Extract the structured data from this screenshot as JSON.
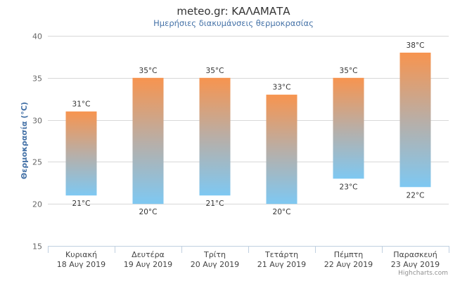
{
  "chart_data": {
    "type": "bar",
    "variant": "columnrange",
    "title": "meteo.gr: ΚΑΛΑΜΑΤΑ",
    "subtitle": "Ημερήσιες διακυμάνσεις θερμοκρασίας",
    "ylabel": "Θερμοκρασία (°C)",
    "ylim": [
      15,
      40
    ],
    "yticks": [
      15,
      20,
      25,
      30,
      35,
      40
    ],
    "grid": true,
    "legend": "none",
    "credits": "Highcharts.com",
    "categories": [
      {
        "day": "Κυριακή",
        "date": "18 Αυγ 2019"
      },
      {
        "day": "Δευτέρα",
        "date": "19 Αυγ 2019"
      },
      {
        "day": "Τρίτη",
        "date": "20 Αυγ 2019"
      },
      {
        "day": "Τετάρτη",
        "date": "21 Αυγ 2019"
      },
      {
        "day": "Πέμπτη",
        "date": "22 Αυγ 2019"
      },
      {
        "day": "Παρασκευή",
        "date": "23 Αυγ 2019"
      }
    ],
    "low": [
      21,
      20,
      21,
      20,
      23,
      22
    ],
    "high": [
      31,
      35,
      35,
      33,
      35,
      38
    ],
    "unit": "°C",
    "colors": {
      "warm": "#f7944f",
      "mid": "#b9aea6",
      "cool": "#7ec8f2",
      "grid": "#d8d8d8",
      "axis": "#c0d0e0"
    }
  }
}
